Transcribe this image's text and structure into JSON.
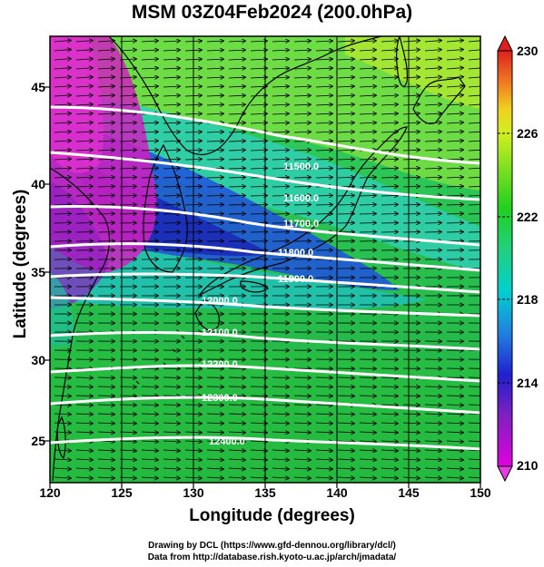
{
  "title": "MSM 03Z04Feb2024 (200.0hPa)",
  "x_axis": {
    "label": "Longitude (degrees)",
    "ticks": [
      "120",
      "125",
      "130",
      "135",
      "140",
      "145",
      "150"
    ]
  },
  "y_axis": {
    "label": "Latitude  (degrees)",
    "ticks": [
      "45",
      "40",
      "35",
      "30",
      "25"
    ]
  },
  "colorbar": {
    "ticks": [
      "230",
      "226",
      "222",
      "218",
      "214",
      "210"
    ],
    "min": 210,
    "max": 230
  },
  "contour_labels": [
    "11500.0",
    "11600.0",
    "11700.0",
    "11800.0",
    "11900.0",
    "12000.0",
    "12100.0",
    "12200.0",
    "12300.0",
    "12400.0"
  ],
  "credits": {
    "line1": "Drawing by DCL (https://www.gfd-dennou.org/library/dcl/)",
    "line2": "Data from http://database.rish.kyoto-u.ac.jp/arch/jmadata/"
  },
  "chart_data": {
    "type": "heatmap",
    "title": "MSM 03Z04Feb2024 (200.0hPa)",
    "xlabel": "Longitude (degrees)",
    "ylabel": "Latitude  (degrees)",
    "xlim": [
      120,
      150
    ],
    "ylim": [
      22.4,
      47.6
    ],
    "colorbar_range": [
      210,
      230
    ],
    "contour_levels": [
      11500,
      11600,
      11700,
      11800,
      11900,
      12000,
      12100,
      12200,
      12300,
      12400
    ],
    "grid": true
  }
}
